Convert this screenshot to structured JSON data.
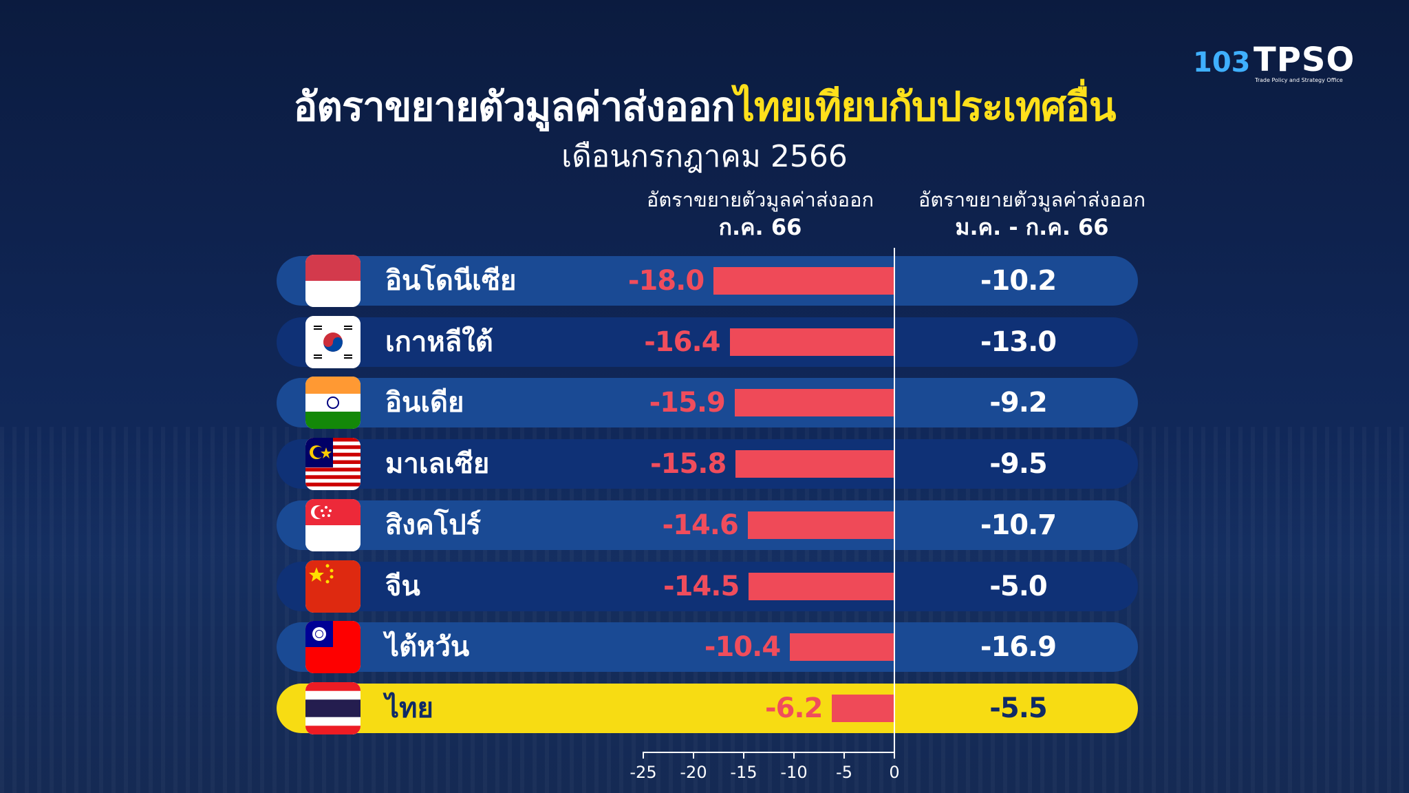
{
  "header": {
    "title_part1": "อัตราขยายตัวมูลค่าส่งออก",
    "title_part2": "ไทยเทียบกับประเทศอื่น",
    "subtitle": "เดือนกรกฎาคม 2566"
  },
  "logos": {
    "left_text": "103",
    "right_text": "TPSO",
    "right_subtext": "Trade Policy and Strategy Office"
  },
  "columns": {
    "left_line1": "อัตราขยายตัวมูลค่าส่งออก",
    "left_line2": "ก.ค. 66",
    "right_line1": "อัตราขยายตัวมูลค่าส่งออก",
    "right_line2": "ม.ค. - ก.ค. 66"
  },
  "colors": {
    "bar": "#ef4a58",
    "highlight": "#f7dc13",
    "row_light": "#1a4a94",
    "row_dark": "#0f3176"
  },
  "chart_data": {
    "type": "bar",
    "orientation": "horizontal",
    "categories": [
      "อินโดนีเซีย",
      "เกาหลีใต้",
      "อินเดีย",
      "มาเลเซีย",
      "สิงคโปร์",
      "จีน",
      "ไต้หวัน",
      "ไทย"
    ],
    "flags": [
      "indonesia-flag",
      "south-korea-flag",
      "india-flag",
      "malaysia-flag",
      "singapore-flag",
      "china-flag",
      "taiwan-flag",
      "thailand-flag"
    ],
    "series": [
      {
        "values": [
          -18.0,
          -16.4,
          -15.9,
          -15.8,
          -14.6,
          -14.5,
          -10.4,
          -6.2
        ]
      },
      {
        "values": [
          -10.2,
          -13.0,
          -9.2,
          -9.5,
          -10.7,
          -5.0,
          -16.9,
          -5.5
        ]
      }
    ],
    "labels_left": [
      "-18.0",
      "-16.4",
      "-15.9",
      "-15.8",
      "-14.6",
      "-14.5",
      "-10.4",
      "-6.2"
    ],
    "labels_right": [
      "-10.2",
      "-13.0",
      "-9.2",
      "-9.5",
      "-10.7",
      "-5.0",
      "-16.9",
      "-5.5"
    ],
    "xlim": [
      -25,
      0
    ],
    "ticks": [
      "-25",
      "-20",
      "-15",
      "-10",
      "-5",
      "0"
    ],
    "highlight_index": 7
  }
}
